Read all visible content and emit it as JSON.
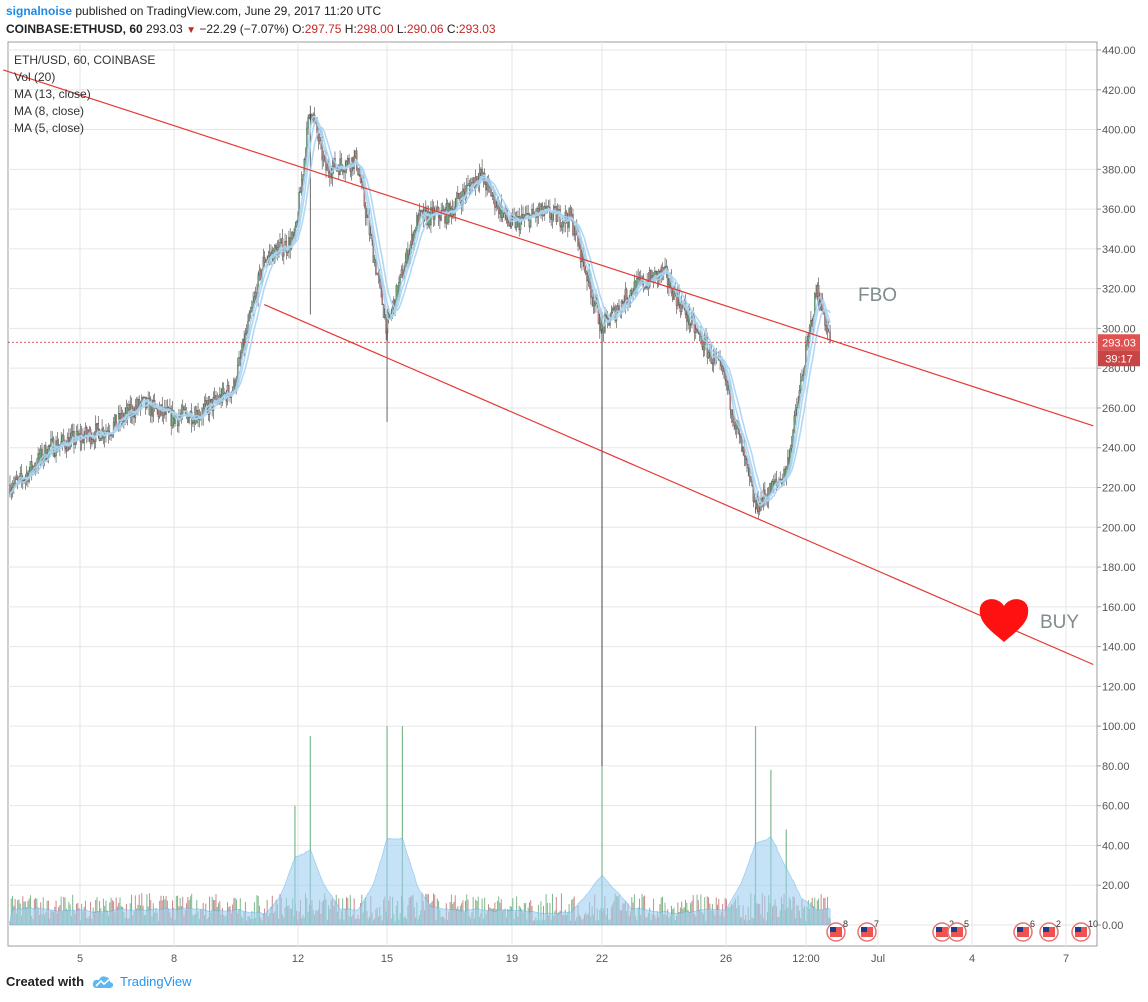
{
  "header": {
    "author": "signalnoise",
    "published": "published on TradingView.com, June 29, 2017 11:20 UTC"
  },
  "quote": {
    "symbol": "COINBASE:ETHUSD, 60",
    "price": "293.03",
    "change": "−22.29 (−7.07%)",
    "o_label": "O:",
    "o": "297.75",
    "h_label": "H:",
    "h": "298.00",
    "l_label": "L:",
    "l": "290.06",
    "c_label": "C:",
    "c": "293.03"
  },
  "legend": {
    "line1": "ETH/USD, 60, COINBASE",
    "line2": "Vol (20)",
    "line3": "MA (13, close)",
    "line4": "MA (8, close)",
    "line5": "MA (5, close)"
  },
  "footer": {
    "created": "Created with",
    "brand": "TradingView"
  },
  "colors": {
    "up": "#7cb98c",
    "down": "#c98888",
    "ma": "#a9d4f2",
    "trend": "#e53935",
    "volume_area": "#9fd0f3",
    "price_tag": "#e05252",
    "heart": "#ff1111",
    "annot": "#7f8c8d",
    "grid": "#e6e6e6"
  },
  "chart_data": {
    "type": "candlestick",
    "title": "ETH/USD, 60, COINBASE",
    "ylim": [
      0,
      440
    ],
    "price_ylim": [
      120,
      440
    ],
    "volume_ylim": [
      0,
      100
    ],
    "y_ticks": [
      "440.00",
      "420.00",
      "400.00",
      "380.00",
      "360.00",
      "340.00",
      "320.00",
      "300.00",
      "280.00",
      "260.00",
      "240.00",
      "220.00",
      "200.00",
      "180.00",
      "160.00",
      "140.00",
      "120.00",
      "100.00",
      "80.00",
      "60.00",
      "40.00",
      "20.00",
      "0.00"
    ],
    "x_ticks": [
      "5",
      "8",
      "12",
      "15",
      "19",
      "22",
      "26",
      "12:00",
      "Jul",
      "4",
      "7"
    ],
    "last_price": "293.03",
    "countdown": "39:17",
    "price_path": [
      [
        "Jun 2",
        220
      ],
      [
        "Jun 3",
        222
      ],
      [
        "Jun 4",
        240
      ],
      [
        "Jun 5",
        245
      ],
      [
        "Jun 6",
        250
      ],
      [
        "Jun 7",
        262
      ],
      [
        "Jun 8",
        255
      ],
      [
        "Jun 9",
        258
      ],
      [
        "Jun 10",
        270
      ],
      [
        "Jun 11",
        335
      ],
      [
        "Jun 12",
        345
      ],
      [
        "Jun 12 12:00",
        412
      ],
      [
        "Jun 13",
        380
      ],
      [
        "Jun 14",
        385
      ],
      [
        "Jun 15",
        300
      ],
      [
        "Jun 16",
        355
      ],
      [
        "Jun 17",
        358
      ],
      [
        "Jun 18",
        378
      ],
      [
        "Jun 19",
        352
      ],
      [
        "Jun 20",
        358
      ],
      [
        "Jun 21",
        355
      ],
      [
        "Jun 22",
        300
      ],
      [
        "Jun 23",
        320
      ],
      [
        "Jun 24",
        328
      ],
      [
        "Jun 25",
        300
      ],
      [
        "Jun 26",
        275
      ],
      [
        "Jun 27",
        210
      ],
      [
        "Jun 28",
        228
      ],
      [
        "Jun 29",
        320
      ],
      [
        "Jun 29 11:00",
        293
      ]
    ],
    "wicks_low": [
      [
        "Jun 15",
        253
      ],
      [
        "Jun 12 12:00",
        307
      ],
      [
        "Jun 27",
        207
      ]
    ],
    "volume_spikes": [
      [
        "Jun 12",
        60
      ],
      [
        "Jun 12 12:00",
        95
      ],
      [
        "Jun 15",
        100
      ],
      [
        "Jun 15 12:00",
        100
      ],
      [
        "Jun 22",
        80
      ],
      [
        "Jun 27",
        100
      ],
      [
        "Jun 27 12:00",
        78
      ],
      [
        "Jun 28",
        48
      ]
    ],
    "trendlines": [
      {
        "name": "upper",
        "from": [
          "Jun 2 12:00",
          430
        ],
        "to": [
          "Jul 8",
          251
        ]
      },
      {
        "name": "lower",
        "from": [
          "Jun 11",
          312
        ],
        "to": [
          "Jul 8",
          131
        ]
      }
    ],
    "series": [
      {
        "name": "MA (13, close)"
      },
      {
        "name": "MA (8, close)"
      },
      {
        "name": "MA (5, close)"
      },
      {
        "name": "Vol (20)"
      }
    ],
    "annotations": [
      "FBO",
      "BUY"
    ],
    "events": [
      {
        "label": "8"
      },
      {
        "label": "7"
      },
      {
        "label": "2"
      },
      {
        "label": "5"
      },
      {
        "label": "6"
      },
      {
        "label": "2"
      },
      {
        "label": "10"
      }
    ]
  }
}
